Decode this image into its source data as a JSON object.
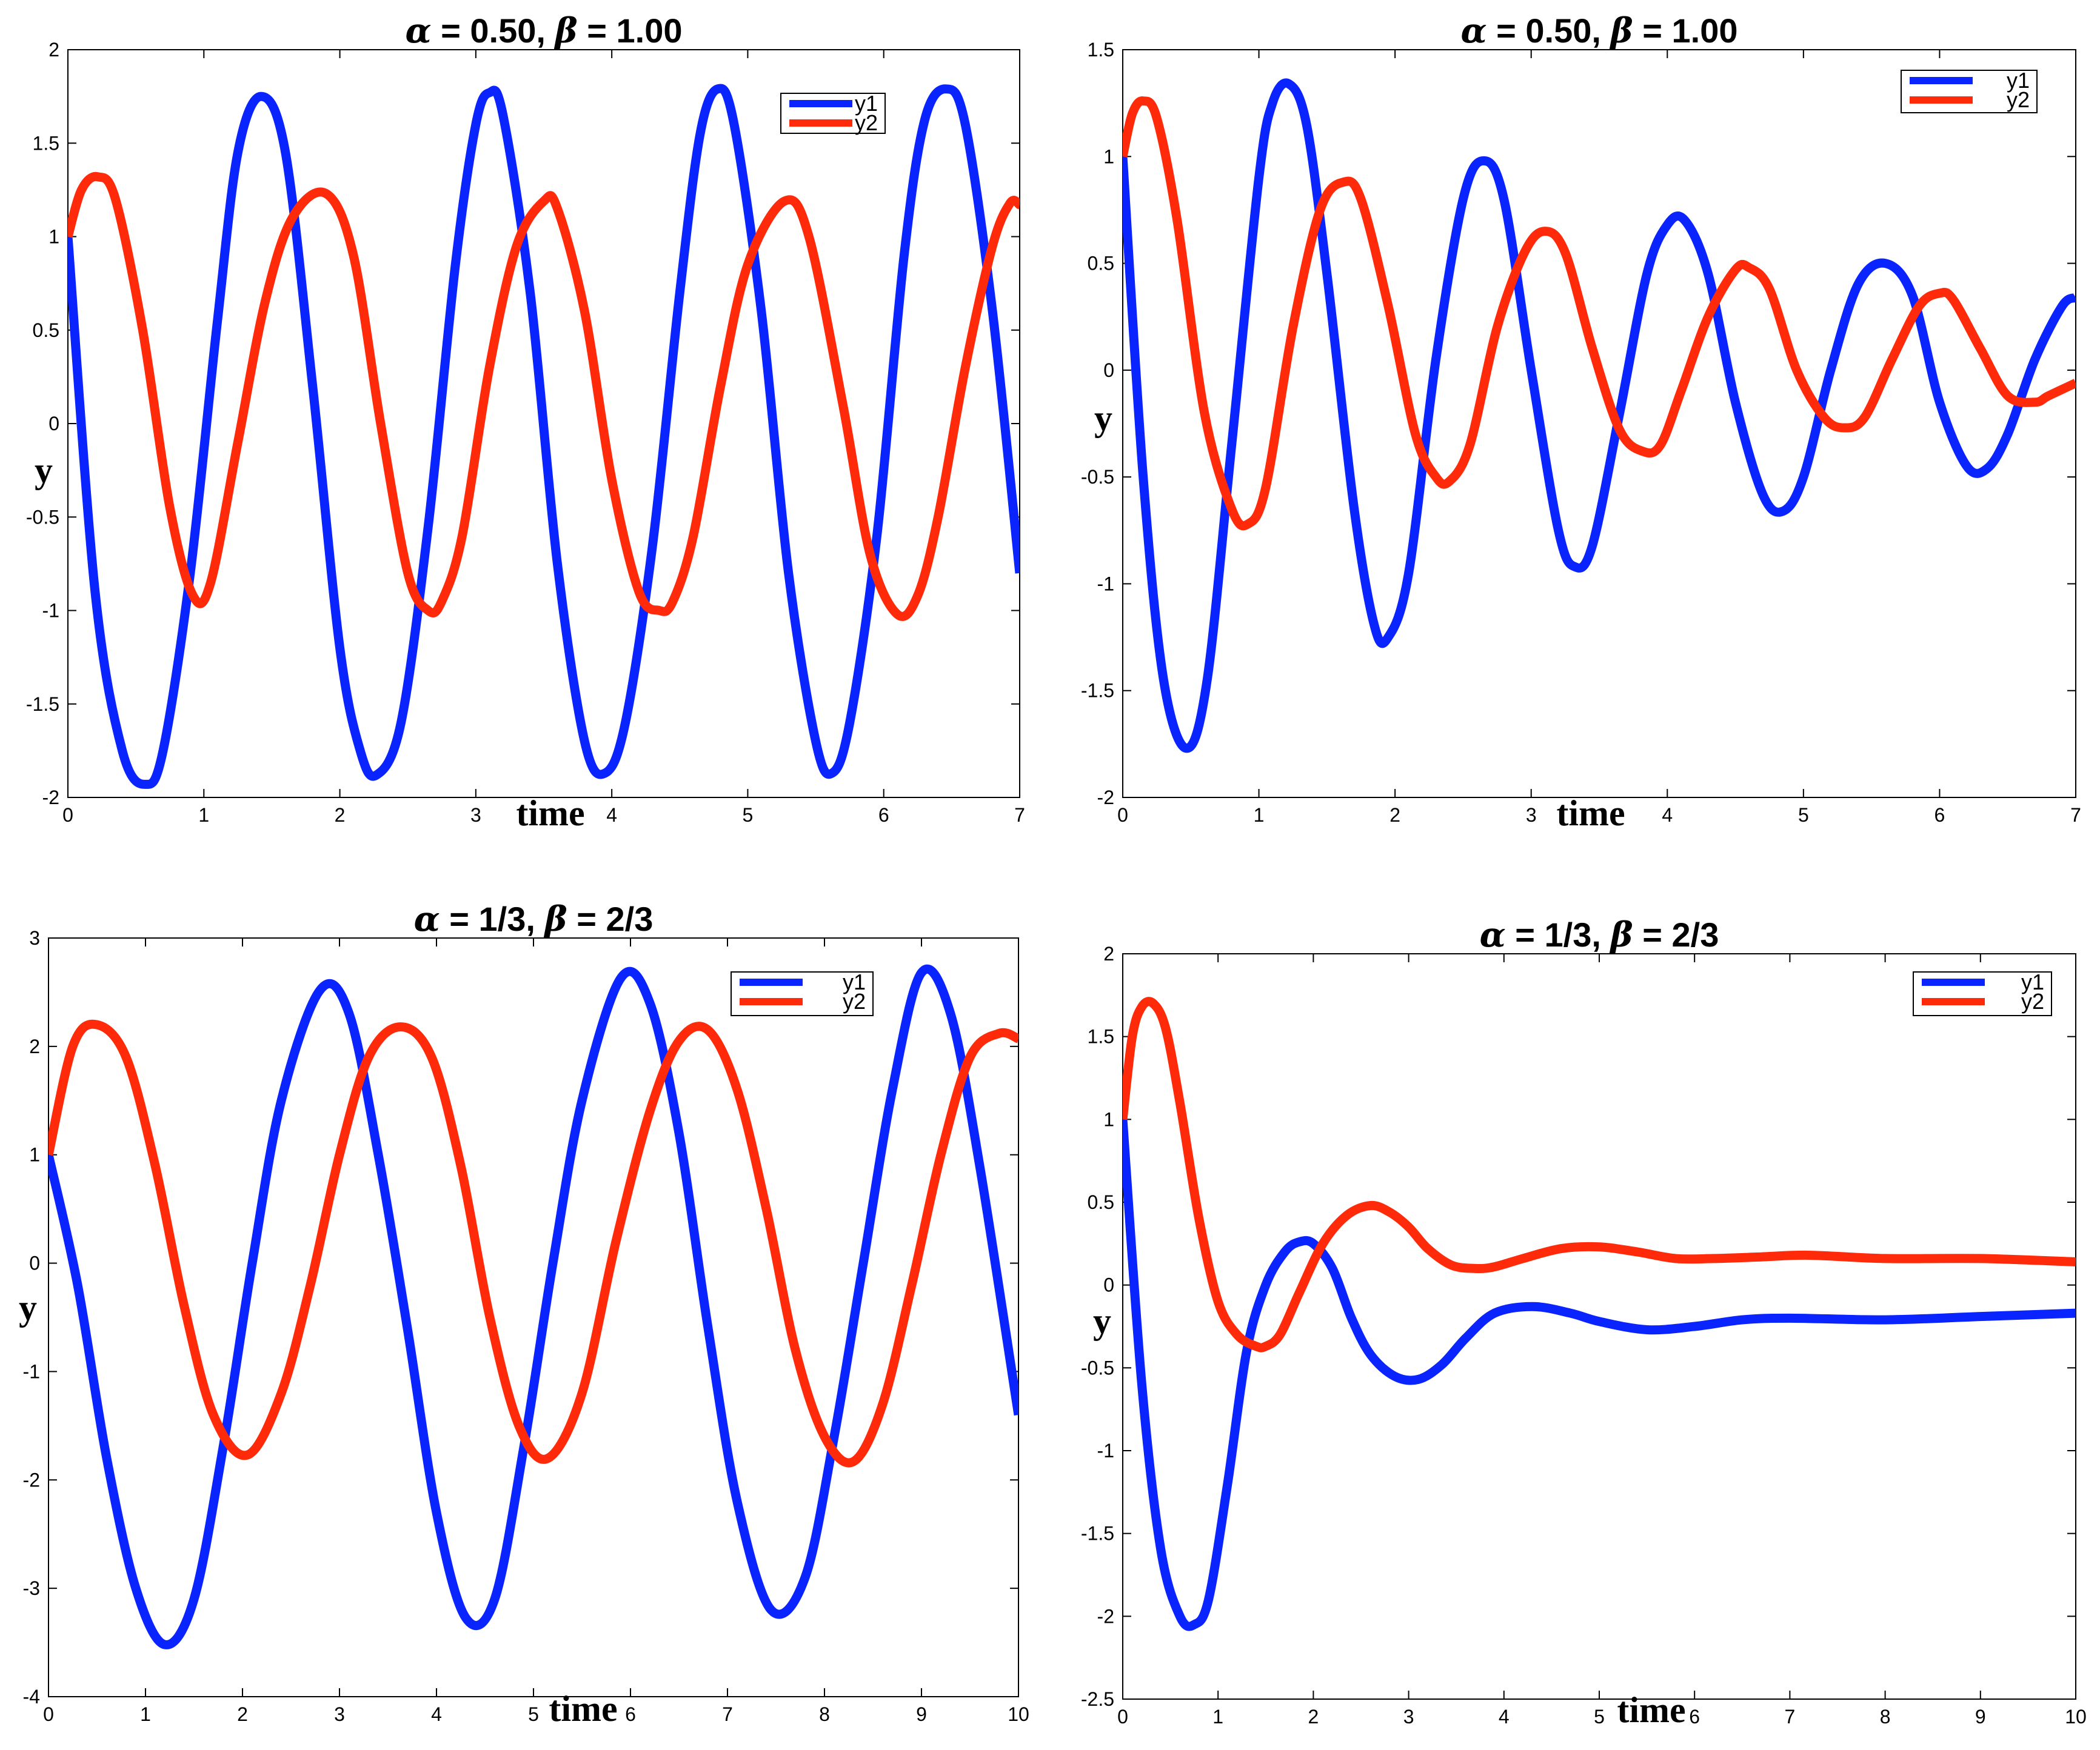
{
  "chart_data": [
    {
      "type": "line",
      "title_parts": [
        "α",
        " = 0.50, ",
        "β",
        " = 1.00"
      ],
      "xlabel": "time",
      "ylabel": "y",
      "xlim": [
        0,
        7
      ],
      "ylim": [
        -2,
        2
      ],
      "xticks": [
        0,
        1,
        2,
        3,
        4,
        5,
        6,
        7
      ],
      "yticks": [
        -2,
        -1.5,
        -1,
        -0.5,
        0,
        0.5,
        1,
        1.5,
        2
      ],
      "xtick_labels": [
        "0",
        "1",
        "2",
        "3",
        "4",
        "5",
        "6",
        "7"
      ],
      "ytick_labels": [
        "-2",
        "-1.5",
        "-1",
        "-0.5",
        "0",
        "0.5",
        "1",
        "1.5",
        "2"
      ],
      "legend_position": "top-right",
      "series": [
        {
          "name": "y1",
          "color": "#0a24ff",
          "x": [
            0,
            0.2,
            0.4,
            0.57,
            0.7,
            0.9,
            1.1,
            1.25,
            1.42,
            1.6,
            1.8,
            2.0,
            2.15,
            2.27,
            2.45,
            2.65,
            2.85,
            3.0,
            3.1,
            3.2,
            3.4,
            3.6,
            3.8,
            3.95,
            4.1,
            4.3,
            4.5,
            4.65,
            4.78,
            4.9,
            5.1,
            5.3,
            5.5,
            5.62,
            5.75,
            5.95,
            6.15,
            6.3,
            6.46,
            6.6,
            6.8,
            7.0
          ],
          "y": [
            1.0,
            -0.9,
            -1.75,
            -1.93,
            -1.75,
            -0.8,
            0.55,
            1.45,
            1.75,
            1.45,
            0.2,
            -1.2,
            -1.75,
            -1.88,
            -1.6,
            -0.55,
            0.85,
            1.6,
            1.77,
            1.65,
            0.7,
            -0.75,
            -1.7,
            -1.87,
            -1.6,
            -0.65,
            0.7,
            1.55,
            1.79,
            1.6,
            0.6,
            -0.8,
            -1.7,
            -1.87,
            -1.6,
            -0.6,
            0.9,
            1.62,
            1.79,
            1.6,
            0.6,
            -0.8
          ]
        },
        {
          "name": "y2",
          "color": "#ff2a0a",
          "x": [
            0,
            0.1,
            0.22,
            0.35,
            0.55,
            0.75,
            0.92,
            1.05,
            1.25,
            1.45,
            1.65,
            1.9,
            2.1,
            2.3,
            2.5,
            2.65,
            2.75,
            2.9,
            3.1,
            3.3,
            3.5,
            3.6,
            3.8,
            4.0,
            4.2,
            4.35,
            4.45,
            4.6,
            4.8,
            5.0,
            5.27,
            5.45,
            5.7,
            5.9,
            6.1,
            6.25,
            6.4,
            6.6,
            6.8,
            6.93,
            7.0
          ],
          "y": [
            1.0,
            1.25,
            1.32,
            1.2,
            0.5,
            -0.45,
            -0.92,
            -0.85,
            -0.1,
            0.65,
            1.1,
            1.23,
            0.9,
            0.0,
            -0.8,
            -1.0,
            -0.95,
            -0.6,
            0.3,
            0.95,
            1.19,
            1.15,
            0.6,
            -0.3,
            -0.9,
            -1.0,
            -0.95,
            -0.6,
            0.2,
            0.85,
            1.19,
            1.0,
            0.1,
            -0.7,
            -1.02,
            -0.92,
            -0.5,
            0.3,
            0.95,
            1.18,
            1.17
          ]
        }
      ]
    },
    {
      "type": "line",
      "title_parts": [
        "α",
        " = 0.50, ",
        "β",
        " = 1.00"
      ],
      "xlabel": "time",
      "ylabel": "y",
      "xlim": [
        0,
        7
      ],
      "ylim": [
        -2,
        1.5
      ],
      "xticks": [
        0,
        1,
        2,
        3,
        4,
        5,
        6,
        7
      ],
      "yticks": [
        -2,
        -1.5,
        -1,
        -0.5,
        0,
        0.5,
        1,
        1.5
      ],
      "xtick_labels": [
        "0",
        "1",
        "2",
        "3",
        "4",
        "5",
        "6",
        "7"
      ],
      "ytick_labels": [
        "-2",
        "-1.5",
        "-1",
        "-0.5",
        "0",
        "0.5",
        "1",
        "1.5"
      ],
      "legend_position": "top-right",
      "series": [
        {
          "name": "y1",
          "color": "#0a24ff",
          "x": [
            0,
            0.15,
            0.3,
            0.47,
            0.62,
            0.8,
            1.0,
            1.1,
            1.22,
            1.35,
            1.5,
            1.7,
            1.85,
            1.95,
            2.1,
            2.3,
            2.5,
            2.65,
            2.8,
            3.0,
            3.2,
            3.32,
            3.45,
            3.65,
            3.85,
            4.0,
            4.13,
            4.3,
            4.5,
            4.7,
            4.85,
            5.0,
            5.2,
            5.4,
            5.6,
            5.8,
            6.0,
            6.2,
            6.35,
            6.5,
            6.7,
            6.9,
            7.0
          ],
          "y": [
            1.0,
            -0.5,
            -1.45,
            -1.77,
            -1.45,
            -0.35,
            0.9,
            1.25,
            1.34,
            1.15,
            0.45,
            -0.65,
            -1.2,
            -1.25,
            -0.95,
            0.05,
            0.8,
            0.98,
            0.8,
            0.0,
            -0.75,
            -0.92,
            -0.82,
            -0.2,
            0.45,
            0.68,
            0.7,
            0.45,
            -0.15,
            -0.58,
            -0.66,
            -0.5,
            0.0,
            0.4,
            0.5,
            0.35,
            -0.15,
            -0.45,
            -0.46,
            -0.3,
            0.05,
            0.3,
            0.34
          ]
        },
        {
          "name": "y2",
          "color": "#ff2a0a",
          "x": [
            0,
            0.07,
            0.15,
            0.25,
            0.4,
            0.6,
            0.8,
            0.92,
            1.05,
            1.25,
            1.45,
            1.62,
            1.75,
            1.95,
            2.15,
            2.3,
            2.4,
            2.55,
            2.75,
            2.95,
            3.1,
            3.25,
            3.45,
            3.65,
            3.82,
            3.95,
            4.1,
            4.3,
            4.5,
            4.6,
            4.75,
            4.95,
            5.15,
            5.3,
            5.45,
            5.65,
            5.85,
            6.0,
            6.1,
            6.3,
            6.5,
            6.7,
            6.8,
            7.0
          ],
          "y": [
            1.0,
            1.2,
            1.26,
            1.18,
            0.7,
            -0.2,
            -0.65,
            -0.72,
            -0.55,
            0.2,
            0.75,
            0.88,
            0.8,
            0.3,
            -0.3,
            -0.5,
            -0.52,
            -0.35,
            0.2,
            0.55,
            0.65,
            0.55,
            0.1,
            -0.28,
            -0.38,
            -0.35,
            -0.1,
            0.25,
            0.47,
            0.48,
            0.38,
            0.0,
            -0.22,
            -0.27,
            -0.22,
            0.05,
            0.3,
            0.36,
            0.33,
            0.1,
            -0.12,
            -0.15,
            -0.12,
            -0.06
          ]
        }
      ]
    },
    {
      "type": "line",
      "title_parts": [
        "α",
        " = 1/3, ",
        "β",
        " = 2/3"
      ],
      "xlabel": "time",
      "ylabel": "y",
      "xlim": [
        0,
        10
      ],
      "ylim": [
        -4,
        3
      ],
      "xticks": [
        0,
        1,
        2,
        3,
        4,
        5,
        6,
        7,
        8,
        9,
        10
      ],
      "yticks": [
        -4,
        -3,
        -2,
        -1,
        0,
        1,
        2,
        3
      ],
      "xtick_labels": [
        "0",
        "1",
        "2",
        "3",
        "4",
        "5",
        "6",
        "7",
        "8",
        "9",
        "10"
      ],
      "ytick_labels": [
        "-4",
        "-3",
        "-2",
        "-1",
        "0",
        "1",
        "2",
        "3"
      ],
      "legend_position": "top-right",
      "series": [
        {
          "name": "y1",
          "color": "#0a24ff",
          "x": [
            0,
            0.3,
            0.6,
            0.9,
            1.2,
            1.5,
            1.8,
            2.1,
            2.4,
            2.8,
            3.1,
            3.4,
            3.7,
            4.0,
            4.3,
            4.6,
            4.9,
            5.2,
            5.5,
            5.9,
            6.2,
            6.5,
            6.8,
            7.1,
            7.45,
            7.8,
            8.1,
            8.4,
            8.7,
            9.0,
            9.3,
            9.6,
            10.0
          ],
          "y": [
            1.0,
            -0.2,
            -1.8,
            -3.0,
            -3.52,
            -3.1,
            -1.7,
            0.0,
            1.5,
            2.52,
            2.3,
            1.0,
            -0.6,
            -2.3,
            -3.27,
            -3.1,
            -1.7,
            0.0,
            1.5,
            2.63,
            2.4,
            1.2,
            -0.6,
            -2.2,
            -3.2,
            -2.9,
            -1.6,
            0.0,
            1.6,
            2.68,
            2.3,
            0.9,
            -1.4
          ]
        },
        {
          "name": "y2",
          "color": "#ff2a0a",
          "x": [
            0,
            0.25,
            0.5,
            0.8,
            1.1,
            1.4,
            1.7,
            2.05,
            2.4,
            2.7,
            3.0,
            3.3,
            3.63,
            3.95,
            4.25,
            4.55,
            4.85,
            5.15,
            5.5,
            5.85,
            6.2,
            6.5,
            6.8,
            7.1,
            7.4,
            7.7,
            8.0,
            8.3,
            8.6,
            8.9,
            9.2,
            9.5,
            9.8,
            10.0
          ],
          "y": [
            1.0,
            2.0,
            2.2,
            1.9,
            0.9,
            -0.4,
            -1.4,
            -1.77,
            -1.2,
            -0.2,
            1.0,
            1.9,
            2.18,
            1.9,
            0.9,
            -0.5,
            -1.5,
            -1.8,
            -1.2,
            0.2,
            1.4,
            2.05,
            2.15,
            1.6,
            0.5,
            -0.8,
            -1.6,
            -1.83,
            -1.3,
            -0.2,
            1.0,
            1.9,
            2.12,
            2.07
          ]
        }
      ]
    },
    {
      "type": "line",
      "title_parts": [
        "α",
        " = 1/3, ",
        "β",
        " = 2/3"
      ],
      "xlabel": "time",
      "ylabel": "y",
      "xlim": [
        0,
        10
      ],
      "ylim": [
        -2.5,
        2
      ],
      "xticks": [
        0,
        1,
        2,
        3,
        4,
        5,
        6,
        7,
        8,
        9,
        10
      ],
      "yticks": [
        -2.5,
        -2,
        -1.5,
        -1,
        -0.5,
        0,
        0.5,
        1,
        1.5,
        2
      ],
      "xtick_labels": [
        "0",
        "1",
        "2",
        "3",
        "4",
        "5",
        "6",
        "7",
        "8",
        "9",
        "10"
      ],
      "ytick_labels": [
        "-2.5",
        "-2",
        "-1.5",
        "-1",
        "-0.5",
        "0",
        "0.5",
        "1",
        "1.5",
        "2"
      ],
      "legend_position": "top-right",
      "series": [
        {
          "name": "y1",
          "color": "#0a24ff",
          "x": [
            0,
            0.2,
            0.4,
            0.6,
            0.75,
            0.9,
            1.1,
            1.3,
            1.5,
            1.7,
            1.85,
            2.0,
            2.2,
            2.4,
            2.6,
            2.85,
            3.1,
            3.35,
            3.6,
            3.9,
            4.3,
            4.7,
            5.0,
            5.5,
            6.0,
            6.5,
            7.0,
            8.0,
            9.0,
            10.0
          ],
          "y": [
            1.0,
            -0.6,
            -1.6,
            -2.0,
            -2.05,
            -1.9,
            -1.2,
            -0.4,
            0.0,
            0.2,
            0.26,
            0.25,
            0.1,
            -0.2,
            -0.42,
            -0.55,
            -0.57,
            -0.48,
            -0.32,
            -0.17,
            -0.13,
            -0.17,
            -0.22,
            -0.27,
            -0.25,
            -0.21,
            -0.2,
            -0.21,
            -0.19,
            -0.17
          ]
        },
        {
          "name": "y2",
          "color": "#ff2a0a",
          "x": [
            0,
            0.1,
            0.2,
            0.32,
            0.45,
            0.6,
            0.8,
            1.0,
            1.2,
            1.4,
            1.5,
            1.65,
            1.85,
            2.1,
            2.35,
            2.6,
            2.8,
            3.0,
            3.2,
            3.45,
            3.7,
            3.9,
            4.2,
            4.6,
            5.0,
            5.4,
            5.8,
            6.2,
            6.7,
            7.2,
            8.0,
            9.0,
            10.0
          ],
          "y": [
            1.0,
            1.5,
            1.68,
            1.7,
            1.55,
            1.1,
            0.4,
            -0.1,
            -0.3,
            -0.37,
            -0.37,
            -0.3,
            -0.05,
            0.25,
            0.42,
            0.48,
            0.44,
            0.35,
            0.22,
            0.12,
            0.1,
            0.11,
            0.16,
            0.22,
            0.23,
            0.2,
            0.16,
            0.16,
            0.17,
            0.18,
            0.16,
            0.16,
            0.14
          ]
        }
      ]
    }
  ]
}
